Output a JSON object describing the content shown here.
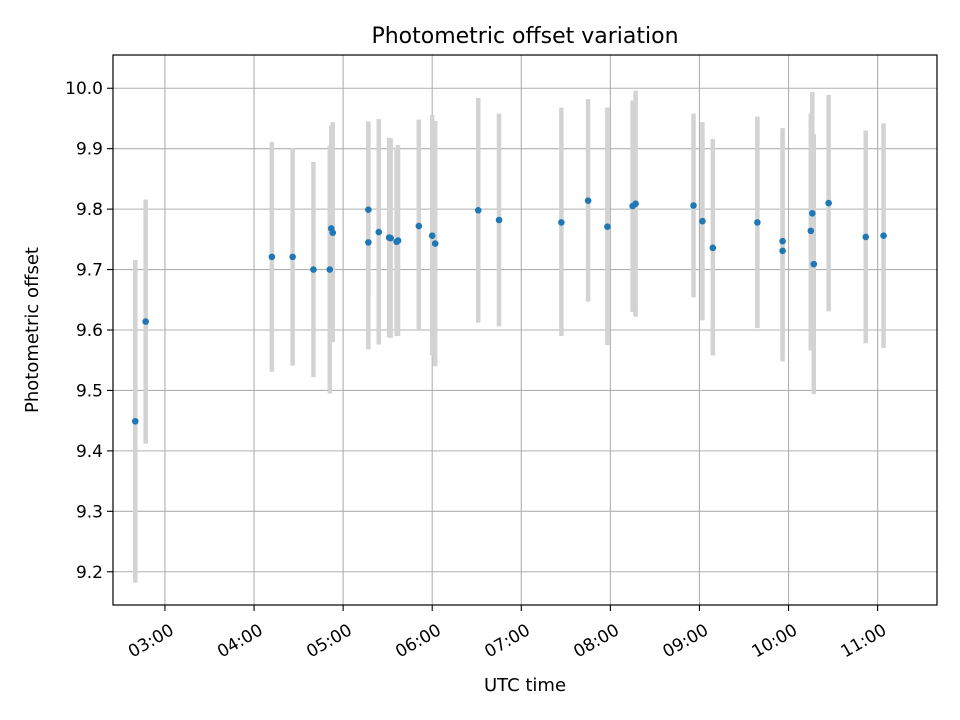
{
  "chart_data": {
    "type": "scatter",
    "title": "Photometric offset variation",
    "xlabel": "UTC time",
    "ylabel": "Photometric offset",
    "x_format": "HH:MM (UTC)",
    "xlim": [
      "02:25",
      "11:40"
    ],
    "ylim": [
      9.145,
      10.055
    ],
    "xticks": [
      "03:00",
      "04:00",
      "05:00",
      "06:00",
      "07:00",
      "08:00",
      "09:00",
      "10:00",
      "11:00"
    ],
    "yticks": [
      9.2,
      9.3,
      9.4,
      9.5,
      9.6,
      9.7,
      9.8,
      9.9,
      10.0
    ],
    "ytick_labels": [
      "9.2",
      "9.3",
      "9.4",
      "9.5",
      "9.6",
      "9.7",
      "9.8",
      "9.9",
      "10.0"
    ],
    "grid": true,
    "point_color": "#1f77b4",
    "errorbar_color": "#d3d3d3",
    "points": [
      {
        "x": "02:40",
        "y": 9.449,
        "ylow": 9.182,
        "yhigh": 9.716
      },
      {
        "x": "02:47",
        "y": 9.614,
        "ylow": 9.412,
        "yhigh": 9.816
      },
      {
        "x": "04:12",
        "y": 9.721,
        "ylow": 9.531,
        "yhigh": 9.911
      },
      {
        "x": "04:26",
        "y": 9.721,
        "ylow": 9.541,
        "yhigh": 9.901
      },
      {
        "x": "04:40",
        "y": 9.7,
        "ylow": 9.522,
        "yhigh": 9.878
      },
      {
        "x": "04:51",
        "y": 9.7,
        "ylow": 9.495,
        "yhigh": 9.905
      },
      {
        "x": "04:52",
        "y": 9.768,
        "ylow": 9.588,
        "yhigh": 9.938
      },
      {
        "x": "04:53",
        "y": 9.761,
        "ylow": 9.58,
        "yhigh": 9.944
      },
      {
        "x": "05:17",
        "y": 9.799,
        "ylow": 9.655,
        "yhigh": 9.943
      },
      {
        "x": "05:17",
        "y": 9.745,
        "ylow": 9.568,
        "yhigh": 9.945
      },
      {
        "x": "05:24",
        "y": 9.762,
        "ylow": 9.576,
        "yhigh": 9.949
      },
      {
        "x": "05:31",
        "y": 9.753,
        "ylow": 9.588,
        "yhigh": 9.918
      },
      {
        "x": "05:32",
        "y": 9.752,
        "ylow": 9.587,
        "yhigh": 9.917
      },
      {
        "x": "05:36",
        "y": 9.746,
        "ylow": 9.59,
        "yhigh": 9.902
      },
      {
        "x": "05:37",
        "y": 9.748,
        "ylow": 9.59,
        "yhigh": 9.906
      },
      {
        "x": "05:51",
        "y": 9.772,
        "ylow": 9.6,
        "yhigh": 9.948
      },
      {
        "x": "06:00",
        "y": 9.756,
        "ylow": 9.558,
        "yhigh": 9.956
      },
      {
        "x": "06:02",
        "y": 9.743,
        "ylow": 9.54,
        "yhigh": 9.946
      },
      {
        "x": "06:31",
        "y": 9.798,
        "ylow": 9.612,
        "yhigh": 9.984
      },
      {
        "x": "06:45",
        "y": 9.782,
        "ylow": 9.606,
        "yhigh": 9.958
      },
      {
        "x": "07:27",
        "y": 9.778,
        "ylow": 9.59,
        "yhigh": 9.968
      },
      {
        "x": "07:45",
        "y": 9.814,
        "ylow": 9.647,
        "yhigh": 9.982
      },
      {
        "x": "07:58",
        "y": 9.771,
        "ylow": 9.575,
        "yhigh": 9.968
      },
      {
        "x": "08:15",
        "y": 9.805,
        "ylow": 9.63,
        "yhigh": 9.98
      },
      {
        "x": "08:17",
        "y": 9.809,
        "ylow": 9.622,
        "yhigh": 9.996
      },
      {
        "x": "08:56",
        "y": 9.806,
        "ylow": 9.654,
        "yhigh": 9.958
      },
      {
        "x": "09:02",
        "y": 9.78,
        "ylow": 9.616,
        "yhigh": 9.944
      },
      {
        "x": "09:09",
        "y": 9.736,
        "ylow": 9.558,
        "yhigh": 9.916
      },
      {
        "x": "09:39",
        "y": 9.778,
        "ylow": 9.603,
        "yhigh": 9.953
      },
      {
        "x": "09:56",
        "y": 9.747,
        "ylow": 9.56,
        "yhigh": 9.934
      },
      {
        "x": "09:56",
        "y": 9.731,
        "ylow": 9.548,
        "yhigh": 9.914
      },
      {
        "x": "10:15",
        "y": 9.764,
        "ylow": 9.566,
        "yhigh": 9.958
      },
      {
        "x": "10:16",
        "y": 9.793,
        "ylow": 9.592,
        "yhigh": 9.994
      },
      {
        "x": "10:17",
        "y": 9.709,
        "ylow": 9.494,
        "yhigh": 9.924
      },
      {
        "x": "10:27",
        "y": 9.81,
        "ylow": 9.631,
        "yhigh": 9.989
      },
      {
        "x": "10:52",
        "y": 9.754,
        "ylow": 9.578,
        "yhigh": 9.93
      },
      {
        "x": "11:04",
        "y": 9.756,
        "ylow": 9.57,
        "yhigh": 9.942
      }
    ]
  }
}
